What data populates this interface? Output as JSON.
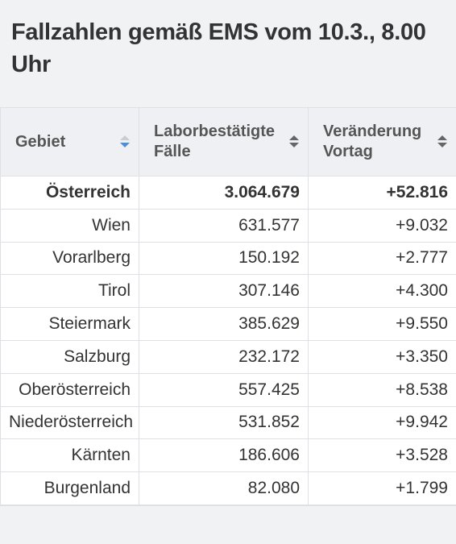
{
  "header": {
    "title": "Fallzahlen gemäß EMS vom 10.3., 8.00 Uhr"
  },
  "table": {
    "headers": [
      "Gebiet",
      "Laborbestätigte Fälle",
      "Veränderung Vortag"
    ],
    "rows": [
      [
        "Österreich",
        "3.064.679",
        "+52.816"
      ],
      [
        "Wien",
        "631.577",
        "+9.032"
      ],
      [
        "Vorarlberg",
        "150.192",
        "+2.777"
      ],
      [
        "Tirol",
        "307.146",
        "+4.300"
      ],
      [
        "Steiermark",
        "385.629",
        "+9.550"
      ],
      [
        "Salzburg",
        "232.172",
        "+3.350"
      ],
      [
        "Oberösterreich",
        "557.425",
        "+8.538"
      ],
      [
        "Niederösterreich",
        "531.852",
        "+9.942"
      ],
      [
        "Kärnten",
        "186.606",
        "+3.528"
      ],
      [
        "Burgenland",
        "82.080",
        "+1.799"
      ]
    ]
  }
}
